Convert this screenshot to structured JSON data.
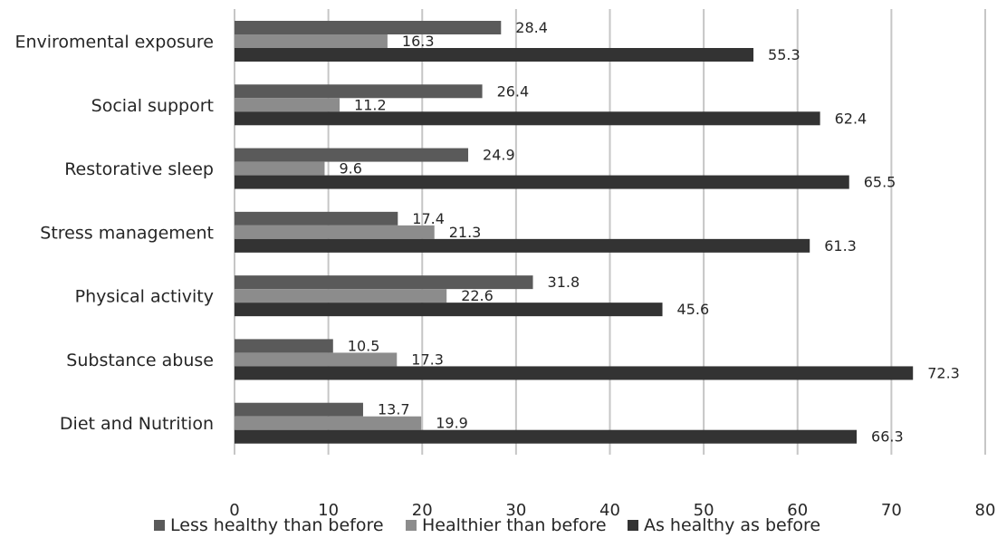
{
  "chart_data": {
    "type": "bar",
    "orientation": "horizontal",
    "categories": [
      "Enviromental exposure",
      "Social support",
      "Restorative sleep",
      "Stress management",
      "Physical activity",
      "Substance abuse",
      "Diet and Nutrition"
    ],
    "series": [
      {
        "name": "Less healthy than before",
        "color": "#5a5a5a",
        "values": [
          28.4,
          26.4,
          24.9,
          17.4,
          31.8,
          10.5,
          13.7
        ]
      },
      {
        "name": "Healthier than before",
        "color": "#8c8c8c",
        "values": [
          16.3,
          11.2,
          9.6,
          21.3,
          22.6,
          17.3,
          19.9
        ]
      },
      {
        "name": "As healthy as before",
        "color": "#333333",
        "values": [
          55.3,
          62.4,
          65.5,
          61.3,
          45.6,
          72.3,
          66.3
        ]
      }
    ],
    "xlim": [
      0,
      80
    ],
    "xticks": [
      "0",
      "10",
      "20",
      "30",
      "40",
      "50",
      "60",
      "70",
      "80"
    ],
    "grid": true,
    "legend_position": "bottom",
    "data_labels": true
  }
}
